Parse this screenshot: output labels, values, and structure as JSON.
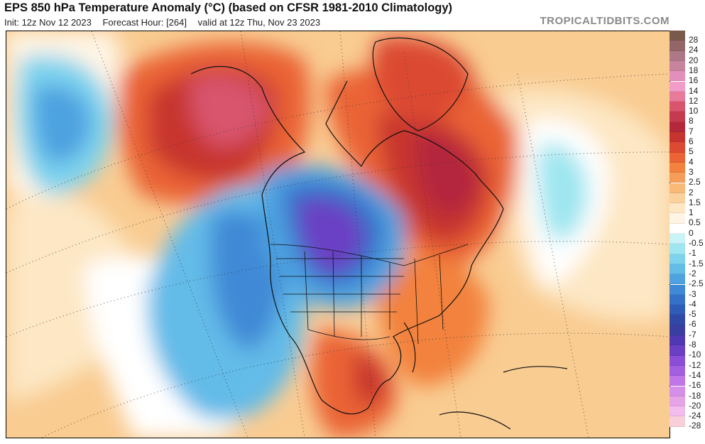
{
  "header": {
    "title": "EPS 850 hPa Temperature Anomaly (°C) (based on CFSR 1981-2010 Climatology)",
    "init": "Init: 12z Nov 12 2023",
    "forecast_hour": "Forecast Hour: [264]",
    "valid": "valid at 12z Thu, Nov 23 2023",
    "credit": "TROPICALTIDBITS.COM"
  },
  "legend": {
    "levels": [
      {
        "label": "28",
        "color": "#7a5a4a"
      },
      {
        "label": "24",
        "color": "#93676a"
      },
      {
        "label": "20",
        "color": "#ad7888"
      },
      {
        "label": "18",
        "color": "#c7849f"
      },
      {
        "label": "16",
        "color": "#e38fbb"
      },
      {
        "label": "14",
        "color": "#f39bc9"
      },
      {
        "label": "12",
        "color": "#e87a9c"
      },
      {
        "label": "10",
        "color": "#d8556d"
      },
      {
        "label": "8",
        "color": "#c53a4e"
      },
      {
        "label": "7",
        "color": "#b4283c"
      },
      {
        "label": "6",
        "color": "#c7342f"
      },
      {
        "label": "5",
        "color": "#dc4a31"
      },
      {
        "label": "4",
        "color": "#ea6435"
      },
      {
        "label": "3",
        "color": "#f2823e"
      },
      {
        "label": "2.5",
        "color": "#f59e5a"
      },
      {
        "label": "2",
        "color": "#f8b979"
      },
      {
        "label": "1.5",
        "color": "#fbd29d"
      },
      {
        "label": "1",
        "color": "#fde7c4"
      },
      {
        "label": "0.5",
        "color": "#fff5e6"
      },
      {
        "label": "0",
        "color": "#ffffff"
      },
      {
        "label": "-0.5",
        "color": "#c9f3f7"
      },
      {
        "label": "-1",
        "color": "#9fe6f0"
      },
      {
        "label": "-1.5",
        "color": "#7dd3ee"
      },
      {
        "label": "-2",
        "color": "#63bbe8"
      },
      {
        "label": "-2.5",
        "color": "#4ea2e0"
      },
      {
        "label": "-3",
        "color": "#3f89d6"
      },
      {
        "label": "-4",
        "color": "#3571c9"
      },
      {
        "label": "-5",
        "color": "#2e5cb8"
      },
      {
        "label": "-6",
        "color": "#3049a6"
      },
      {
        "label": "-7",
        "color": "#3a3ea0"
      },
      {
        "label": "-8",
        "color": "#5038b3"
      },
      {
        "label": "-10",
        "color": "#6a3fc4"
      },
      {
        "label": "-12",
        "color": "#8a4fd6"
      },
      {
        "label": "-14",
        "color": "#a25fe0"
      },
      {
        "label": "-16",
        "color": "#bf76e8"
      },
      {
        "label": "-18",
        "color": "#d58fe8"
      },
      {
        "label": "-20",
        "color": "#e6a4e6"
      },
      {
        "label": "-24",
        "color": "#f2bcec"
      },
      {
        "label": "-28",
        "color": "#f8cfd8"
      }
    ]
  }
}
